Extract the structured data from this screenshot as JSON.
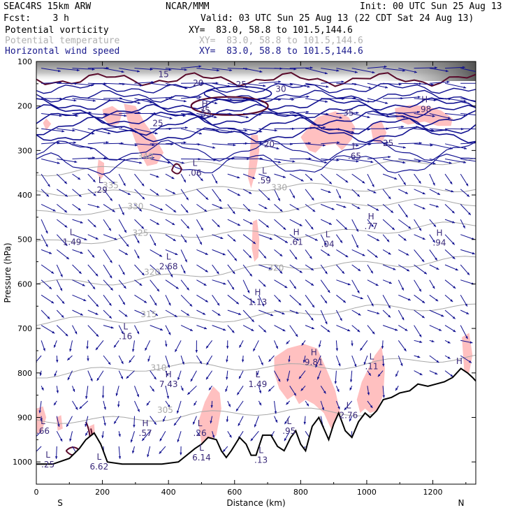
{
  "header": {
    "model": "SEAC4RS 15km ARW",
    "center": "NCAR/MMM",
    "init": "Init: 00 UTC Sun 25 Aug 13",
    "fcst": "Fcst:    3 h",
    "valid": "Valid: 03 UTC Sun 25 Aug 13 (22 CDT Sat 24 Aug 13)",
    "fields": [
      {
        "name": "Potential vorticity",
        "xy": "XY=  83.0, 58.8 to 101.5,144.6",
        "color": "#000000"
      },
      {
        "name": "Potential temperature",
        "xy": "XY=  83.0, 58.8 to 101.5,144.6",
        "color": "#b0b0b0"
      },
      {
        "name": "Horizontal wind speed",
        "xy": "XY=  83.0, 58.8 to 101.5,144.6",
        "color": "#1a1a8c"
      }
    ]
  },
  "chart_data": {
    "type": "cross-section",
    "xlabel": "Distance (km)",
    "ylabel": "Pressure (hPa)",
    "xlim": [
      0,
      1330
    ],
    "ylim": [
      1050,
      100
    ],
    "x_ticks": [
      0,
      200,
      400,
      600,
      800,
      1000,
      1200
    ],
    "y_ticks": [
      100,
      200,
      300,
      400,
      500,
      600,
      700,
      800,
      900,
      1000
    ],
    "left_end_label": "S",
    "right_end_label": "N",
    "colors": {
      "pv_shading": "#ffc0c0",
      "theta": "#a8a8a8",
      "wind": "#101090",
      "labels": "#3a2a7a",
      "terrain": "#000000",
      "pv_contour": "#5a0a2a"
    },
    "theta_contours": [
      {
        "label": "305",
        "x": 390,
        "p": 890
      },
      {
        "label": "310",
        "x": 370,
        "p": 795
      },
      {
        "label": "315",
        "x": 340,
        "p": 675
      },
      {
        "label": "320",
        "x": 350,
        "p": 580
      },
      {
        "label": "320",
        "x": 725,
        "p": 570
      },
      {
        "label": "325",
        "x": 315,
        "p": 492
      },
      {
        "label": "330",
        "x": 300,
        "p": 432
      },
      {
        "label": "330",
        "x": 735,
        "p": 390
      },
      {
        "label": "335",
        "x": 225,
        "p": 385
      },
      {
        "label": "340",
        "x": 330,
        "p": 320
      }
    ],
    "wind_speed_labels": [
      {
        "label": "15",
        "x": 385,
        "p": 135
      },
      {
        "label": "20",
        "x": 490,
        "p": 155
      },
      {
        "label": "25",
        "x": 620,
        "p": 158
      },
      {
        "label": "30",
        "x": 740,
        "p": 168
      },
      {
        "label": "35",
        "x": 510,
        "p": 216
      },
      {
        "label": "35",
        "x": 945,
        "p": 222
      },
      {
        "label": "25",
        "x": 368,
        "p": 245
      },
      {
        "label": "20",
        "x": 705,
        "p": 292
      },
      {
        "label": "25",
        "x": 1065,
        "p": 290
      }
    ],
    "extrema": [
      {
        "type": "H",
        "value": ".98",
        "x": 1175,
        "p": 192
      },
      {
        "type": "H",
        "value": ".53",
        "x": 510,
        "p": 202
      },
      {
        "type": "L",
        "value": ".65",
        "x": 963,
        "p": 297
      },
      {
        "type": "L",
        "value": ".06",
        "x": 480,
        "p": 335
      },
      {
        "type": "L",
        "value": ".59",
        "x": 690,
        "p": 352
      },
      {
        "type": "L",
        "value": ".29",
        "x": 195,
        "p": 373
      },
      {
        "type": "L",
        "value": "1.49",
        "x": 108,
        "p": 490
      },
      {
        "type": "H",
        "value": ".61",
        "x": 787,
        "p": 490
      },
      {
        "type": "L",
        "value": ".04",
        "x": 882,
        "p": 495
      },
      {
        "type": "H",
        "value": ".77",
        "x": 1013,
        "p": 455
      },
      {
        "type": "H",
        "value": ".94",
        "x": 1220,
        "p": 492
      },
      {
        "type": "L",
        "value": "2.68",
        "x": 400,
        "p": 545
      },
      {
        "type": "H",
        "value": "1.13",
        "x": 670,
        "p": 625
      },
      {
        "type": "L",
        "value": ".16",
        "x": 270,
        "p": 702
      },
      {
        "type": "H",
        "value": "9.81",
        "x": 840,
        "p": 760
      },
      {
        "type": "L",
        "value": ".11",
        "x": 1015,
        "p": 770
      },
      {
        "type": "H",
        "value": "7.43",
        "x": 400,
        "p": 810
      },
      {
        "type": "L",
        "value": "1.49",
        "x": 670,
        "p": 810
      },
      {
        "type": "H",
        "value": "",
        "x": 1280,
        "p": 780
      },
      {
        "type": "L",
        "value": "2.76",
        "x": 945,
        "p": 880
      },
      {
        "type": "L",
        "value": ".66",
        "x": 20,
        "p": 915
      },
      {
        "type": "H",
        "value": ".57",
        "x": 330,
        "p": 920
      },
      {
        "type": "L",
        "value": ".26",
        "x": 495,
        "p": 920
      },
      {
        "type": "L",
        "value": ".95",
        "x": 765,
        "p": 915
      },
      {
        "type": "L",
        "value": "6.14",
        "x": 500,
        "p": 975
      },
      {
        "type": "L",
        "value": ".25",
        "x": 35,
        "p": 990
      },
      {
        "type": "L",
        "value": "6.62",
        "x": 190,
        "p": 995
      },
      {
        "type": "L",
        "value": ".13",
        "x": 680,
        "p": 980
      }
    ],
    "terrain_profile": [
      [
        0,
        1005
      ],
      [
        50,
        1005
      ],
      [
        100,
        992
      ],
      [
        130,
        970
      ],
      [
        150,
        950
      ],
      [
        175,
        935
      ],
      [
        195,
        960
      ],
      [
        215,
        1000
      ],
      [
        260,
        1005
      ],
      [
        320,
        1005
      ],
      [
        380,
        1005
      ],
      [
        430,
        1000
      ],
      [
        455,
        985
      ],
      [
        480,
        970
      ],
      [
        500,
        960
      ],
      [
        520,
        945
      ],
      [
        545,
        950
      ],
      [
        560,
        975
      ],
      [
        575,
        990
      ],
      [
        590,
        975
      ],
      [
        615,
        945
      ],
      [
        635,
        960
      ],
      [
        650,
        985
      ],
      [
        665,
        985
      ],
      [
        685,
        940
      ],
      [
        710,
        940
      ],
      [
        730,
        965
      ],
      [
        750,
        975
      ],
      [
        770,
        945
      ],
      [
        785,
        930
      ],
      [
        800,
        960
      ],
      [
        815,
        975
      ],
      [
        835,
        920
      ],
      [
        855,
        900
      ],
      [
        870,
        925
      ],
      [
        885,
        950
      ],
      [
        900,
        915
      ],
      [
        915,
        890
      ],
      [
        935,
        930
      ],
      [
        955,
        945
      ],
      [
        975,
        910
      ],
      [
        995,
        890
      ],
      [
        1010,
        900
      ],
      [
        1030,
        885
      ],
      [
        1050,
        860
      ],
      [
        1075,
        855
      ],
      [
        1100,
        845
      ],
      [
        1130,
        840
      ],
      [
        1155,
        825
      ],
      [
        1185,
        830
      ],
      [
        1210,
        825
      ],
      [
        1235,
        820
      ],
      [
        1260,
        810
      ],
      [
        1285,
        790
      ],
      [
        1305,
        800
      ],
      [
        1320,
        810
      ],
      [
        1330,
        818
      ]
    ],
    "pv_shaded_regions": [
      [
        [
          200,
          208
        ],
        [
          230,
          200
        ],
        [
          260,
          215
        ],
        [
          250,
          240
        ],
        [
          225,
          245
        ],
        [
          205,
          230
        ]
      ],
      [
        [
          20,
          238
        ],
        [
          30,
          228
        ],
        [
          45,
          240
        ],
        [
          30,
          255
        ]
      ],
      [
        [
          265,
          195
        ],
        [
          300,
          200
        ],
        [
          330,
          240
        ],
        [
          360,
          270
        ],
        [
          385,
          305
        ],
        [
          365,
          330
        ],
        [
          335,
          335
        ],
        [
          310,
          300
        ],
        [
          290,
          260
        ],
        [
          275,
          230
        ]
      ],
      [
        [
          188,
          320
        ],
        [
          205,
          328
        ],
        [
          205,
          355
        ],
        [
          195,
          365
        ],
        [
          183,
          350
        ]
      ],
      [
        [
          650,
          265
        ],
        [
          670,
          265
        ],
        [
          675,
          300
        ],
        [
          665,
          345
        ],
        [
          650,
          385
        ],
        [
          640,
          360
        ],
        [
          645,
          320
        ]
      ],
      [
        [
          800,
          270
        ],
        [
          850,
          225
        ],
        [
          905,
          212
        ],
        [
          945,
          225
        ],
        [
          965,
          248
        ],
        [
          955,
          275
        ],
        [
          925,
          300
        ],
        [
          905,
          285
        ],
        [
          865,
          290
        ],
        [
          845,
          305
        ],
        [
          825,
          300
        ]
      ],
      [
        [
          1085,
          205
        ],
        [
          1130,
          198
        ],
        [
          1180,
          200
        ],
        [
          1225,
          210
        ],
        [
          1260,
          228
        ],
        [
          1255,
          245
        ],
        [
          1215,
          245
        ],
        [
          1175,
          235
        ],
        [
          1125,
          242
        ],
        [
          1090,
          230
        ]
      ],
      [
        [
          1010,
          240
        ],
        [
          1045,
          235
        ],
        [
          1060,
          260
        ],
        [
          1045,
          285
        ],
        [
          1020,
          280
        ]
      ],
      [
        [
          655,
          460
        ],
        [
          668,
          455
        ],
        [
          675,
          500
        ],
        [
          672,
          540
        ],
        [
          660,
          550
        ],
        [
          652,
          520
        ]
      ],
      [
        [
          720,
          765
        ],
        [
          760,
          745
        ],
        [
          810,
          735
        ],
        [
          850,
          745
        ],
        [
          880,
          795
        ],
        [
          905,
          840
        ],
        [
          920,
          890
        ],
        [
          910,
          930
        ],
        [
          895,
          930
        ],
        [
          870,
          890
        ],
        [
          840,
          870
        ],
        [
          815,
          860
        ],
        [
          795,
          870
        ],
        [
          780,
          850
        ],
        [
          760,
          860
        ],
        [
          735,
          835
        ],
        [
          720,
          800
        ]
      ],
      [
        [
          970,
          860
        ],
        [
          985,
          820
        ],
        [
          1005,
          790
        ],
        [
          1025,
          760
        ],
        [
          1045,
          740
        ],
        [
          1055,
          790
        ],
        [
          1050,
          850
        ],
        [
          1030,
          885
        ],
        [
          1010,
          890
        ],
        [
          995,
          880
        ],
        [
          980,
          890
        ]
      ],
      [
        [
          490,
          910
        ],
        [
          510,
          865
        ],
        [
          535,
          830
        ],
        [
          555,
          845
        ],
        [
          560,
          880
        ],
        [
          545,
          940
        ],
        [
          520,
          960
        ],
        [
          500,
          960
        ]
      ],
      [
        [
          1288,
          720
        ],
        [
          1310,
          710
        ],
        [
          1320,
          760
        ],
        [
          1310,
          800
        ],
        [
          1295,
          795
        ]
      ],
      [
        [
          0,
          880
        ],
        [
          20,
          875
        ],
        [
          30,
          900
        ],
        [
          15,
          935
        ],
        [
          0,
          935
        ]
      ],
      [
        [
          60,
          900
        ],
        [
          75,
          895
        ],
        [
          80,
          925
        ],
        [
          65,
          930
        ]
      ],
      [
        [
          160,
          920
        ],
        [
          175,
          915
        ],
        [
          178,
          945
        ],
        [
          163,
          950
        ]
      ]
    ]
  }
}
